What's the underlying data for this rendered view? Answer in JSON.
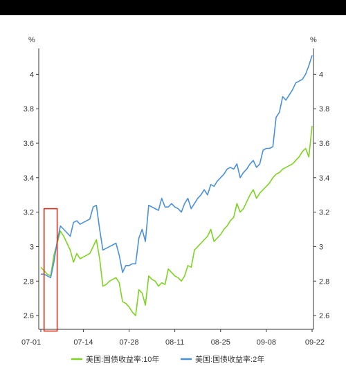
{
  "chart_data": {
    "type": "line",
    "left_unit": "%",
    "right_unit": "%",
    "y_ticks": [
      "2.6",
      "2.8",
      "3",
      "3.2",
      "3.4",
      "3.6",
      "3.8",
      "4"
    ],
    "y_tick_values": [
      2.6,
      2.8,
      3.0,
      3.2,
      3.4,
      3.6,
      3.8,
      4.0
    ],
    "x_ticks": [
      "07-01",
      "07-14",
      "07-28",
      "08-11",
      "08-25",
      "09-08",
      "09-22"
    ],
    "x_tick_days": [
      0,
      13,
      27,
      41,
      55,
      69,
      83
    ],
    "ylim": [
      2.52,
      4.15
    ],
    "xlim_days": [
      0,
      83
    ],
    "series": [
      {
        "name": "美国:国债收益率:10年",
        "color": "#7ed321",
        "points": [
          [
            0,
            2.88
          ],
          [
            1,
            2.86
          ],
          [
            2,
            2.84
          ],
          [
            3,
            2.83
          ],
          [
            4,
            2.95
          ],
          [
            5,
            3.02
          ],
          [
            6,
            3.09
          ],
          [
            7,
            3.06
          ],
          [
            8,
            3.02
          ],
          [
            9,
            2.98
          ],
          [
            10,
            2.91
          ],
          [
            11,
            2.96
          ],
          [
            12,
            2.93
          ],
          [
            13,
            2.94
          ],
          [
            14,
            2.95
          ],
          [
            15,
            2.96
          ],
          [
            16,
            3.0
          ],
          [
            17,
            3.04
          ],
          [
            18,
            2.93
          ],
          [
            19,
            2.77
          ],
          [
            20,
            2.78
          ],
          [
            21,
            2.8
          ],
          [
            22,
            2.81
          ],
          [
            23,
            2.82
          ],
          [
            24,
            2.79
          ],
          [
            25,
            2.68
          ],
          [
            26,
            2.67
          ],
          [
            27,
            2.65
          ],
          [
            28,
            2.62
          ],
          [
            29,
            2.6
          ],
          [
            30,
            2.75
          ],
          [
            31,
            2.73
          ],
          [
            32,
            2.66
          ],
          [
            33,
            2.83
          ],
          [
            34,
            2.81
          ],
          [
            35,
            2.8
          ],
          [
            36,
            2.77
          ],
          [
            37,
            2.79
          ],
          [
            38,
            2.78
          ],
          [
            39,
            2.87
          ],
          [
            40,
            2.85
          ],
          [
            41,
            2.83
          ],
          [
            42,
            2.82
          ],
          [
            43,
            2.8
          ],
          [
            44,
            2.83
          ],
          [
            45,
            2.89
          ],
          [
            46,
            2.88
          ],
          [
            47,
            2.98
          ],
          [
            48,
            3.0
          ],
          [
            49,
            3.02
          ],
          [
            50,
            3.04
          ],
          [
            51,
            3.06
          ],
          [
            52,
            3.1
          ],
          [
            53,
            3.03
          ],
          [
            54,
            3.05
          ],
          [
            55,
            3.07
          ],
          [
            56,
            3.1
          ],
          [
            57,
            3.12
          ],
          [
            58,
            3.15
          ],
          [
            59,
            3.17
          ],
          [
            60,
            3.25
          ],
          [
            61,
            3.2
          ],
          [
            62,
            3.22
          ],
          [
            63,
            3.26
          ],
          [
            64,
            3.3
          ],
          [
            65,
            3.33
          ],
          [
            66,
            3.28
          ],
          [
            67,
            3.31
          ],
          [
            68,
            3.33
          ],
          [
            69,
            3.35
          ],
          [
            70,
            3.37
          ],
          [
            71,
            3.4
          ],
          [
            72,
            3.42
          ],
          [
            73,
            3.43
          ],
          [
            74,
            3.45
          ],
          [
            75,
            3.46
          ],
          [
            76,
            3.47
          ],
          [
            77,
            3.48
          ],
          [
            78,
            3.5
          ],
          [
            79,
            3.52
          ],
          [
            80,
            3.55
          ],
          [
            81,
            3.57
          ],
          [
            82,
            3.52
          ],
          [
            83,
            3.7
          ]
        ]
      },
      {
        "name": "美国:国债收益率:2年",
        "color": "#4a90d9",
        "points": [
          [
            0,
            2.84
          ],
          [
            1,
            2.84
          ],
          [
            2,
            2.83
          ],
          [
            3,
            2.82
          ],
          [
            4,
            2.91
          ],
          [
            5,
            3.03
          ],
          [
            6,
            3.12
          ],
          [
            7,
            3.1
          ],
          [
            8,
            3.08
          ],
          [
            9,
            3.06
          ],
          [
            10,
            3.14
          ],
          [
            11,
            3.15
          ],
          [
            12,
            3.13
          ],
          [
            13,
            3.14
          ],
          [
            14,
            3.15
          ],
          [
            15,
            3.16
          ],
          [
            16,
            3.23
          ],
          [
            17,
            3.24
          ],
          [
            18,
            3.1
          ],
          [
            19,
            2.98
          ],
          [
            20,
            2.99
          ],
          [
            21,
            3.0
          ],
          [
            22,
            3.01
          ],
          [
            23,
            3.02
          ],
          [
            24,
            2.95
          ],
          [
            25,
            2.85
          ],
          [
            26,
            2.89
          ],
          [
            27,
            2.89
          ],
          [
            28,
            2.9
          ],
          [
            29,
            2.9
          ],
          [
            30,
            3.05
          ],
          [
            31,
            3.1
          ],
          [
            32,
            3.03
          ],
          [
            33,
            3.24
          ],
          [
            34,
            3.23
          ],
          [
            35,
            3.22
          ],
          [
            36,
            3.21
          ],
          [
            37,
            3.28
          ],
          [
            38,
            3.23
          ],
          [
            39,
            3.23
          ],
          [
            40,
            3.25
          ],
          [
            41,
            3.23
          ],
          [
            42,
            3.22
          ],
          [
            43,
            3.2
          ],
          [
            44,
            3.25
          ],
          [
            45,
            3.28
          ],
          [
            46,
            3.22
          ],
          [
            47,
            3.25
          ],
          [
            48,
            3.28
          ],
          [
            49,
            3.3
          ],
          [
            50,
            3.33
          ],
          [
            51,
            3.3
          ],
          [
            52,
            3.36
          ],
          [
            53,
            3.35
          ],
          [
            54,
            3.38
          ],
          [
            55,
            3.4
          ],
          [
            56,
            3.42
          ],
          [
            57,
            3.45
          ],
          [
            58,
            3.46
          ],
          [
            59,
            3.45
          ],
          [
            60,
            3.48
          ],
          [
            61,
            3.4
          ],
          [
            62,
            3.43
          ],
          [
            63,
            3.45
          ],
          [
            64,
            3.48
          ],
          [
            65,
            3.5
          ],
          [
            66,
            3.46
          ],
          [
            67,
            3.48
          ],
          [
            68,
            3.56
          ],
          [
            69,
            3.57
          ],
          [
            70,
            3.57
          ],
          [
            71,
            3.58
          ],
          [
            72,
            3.75
          ],
          [
            73,
            3.78
          ],
          [
            74,
            3.87
          ],
          [
            75,
            3.85
          ],
          [
            76,
            3.88
          ],
          [
            77,
            3.91
          ],
          [
            78,
            3.95
          ],
          [
            79,
            3.96
          ],
          [
            80,
            3.97
          ],
          [
            81,
            4.0
          ],
          [
            82,
            4.05
          ],
          [
            83,
            4.11
          ]
        ]
      }
    ],
    "highlight_box": {
      "x_range_days": [
        1,
        5
      ],
      "y_range": [
        2.51,
        3.22
      ],
      "color": "#d9301c"
    },
    "legend_position": "bottom-center",
    "grid": false
  }
}
